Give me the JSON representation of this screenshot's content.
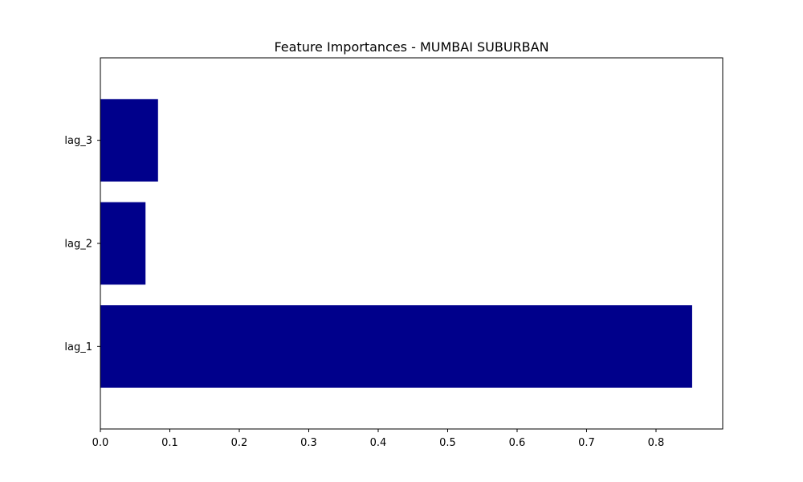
{
  "chart_data": {
    "type": "bar",
    "orientation": "horizontal",
    "title": "Feature Importances - MUMBAI SUBURBAN",
    "xlabel": "",
    "ylabel": "",
    "categories": [
      "lag_1",
      "lag_2",
      "lag_3"
    ],
    "values": [
      0.852,
      0.065,
      0.083
    ],
    "xlim": [
      0.0,
      0.896
    ],
    "xticks": [
      "0.0",
      "0.1",
      "0.2",
      "0.3",
      "0.4",
      "0.5",
      "0.6",
      "0.7",
      "0.8"
    ],
    "bar_color": "#00008b",
    "grid": false,
    "legend": false
  }
}
